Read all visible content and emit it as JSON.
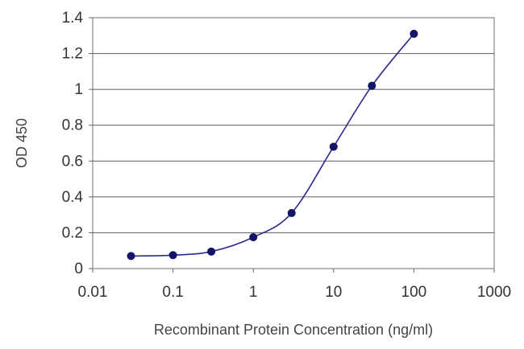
{
  "chart_data": {
    "type": "line",
    "xscale": "log",
    "xlabel": "Recombinant Protein Concentration (ng/ml)",
    "ylabel": "OD 450",
    "xlim": [
      0.01,
      1000
    ],
    "ylim": [
      0,
      1.4
    ],
    "x_ticks": [
      0.01,
      0.1,
      1,
      10,
      100,
      1000
    ],
    "x_tick_labels": [
      "0.01",
      "0.1",
      "1",
      "10",
      "100",
      "1000"
    ],
    "y_ticks": [
      0,
      0.2,
      0.4,
      0.6,
      0.8,
      1,
      1.2,
      1.4
    ],
    "y_tick_labels": [
      "0",
      "0.2",
      "0.4",
      "0.6",
      "0.8",
      "1",
      "1.2",
      "1.4"
    ],
    "grid": "horizontal",
    "legend": "none",
    "series": [
      {
        "x": [
          0.03,
          0.1,
          0.3,
          1,
          3,
          10,
          30,
          100
        ],
        "values": [
          0.07,
          0.075,
          0.095,
          0.175,
          0.31,
          0.68,
          1.02,
          1.31
        ],
        "color": "#2b2b8f",
        "marker_color": "#14146b"
      }
    ]
  }
}
